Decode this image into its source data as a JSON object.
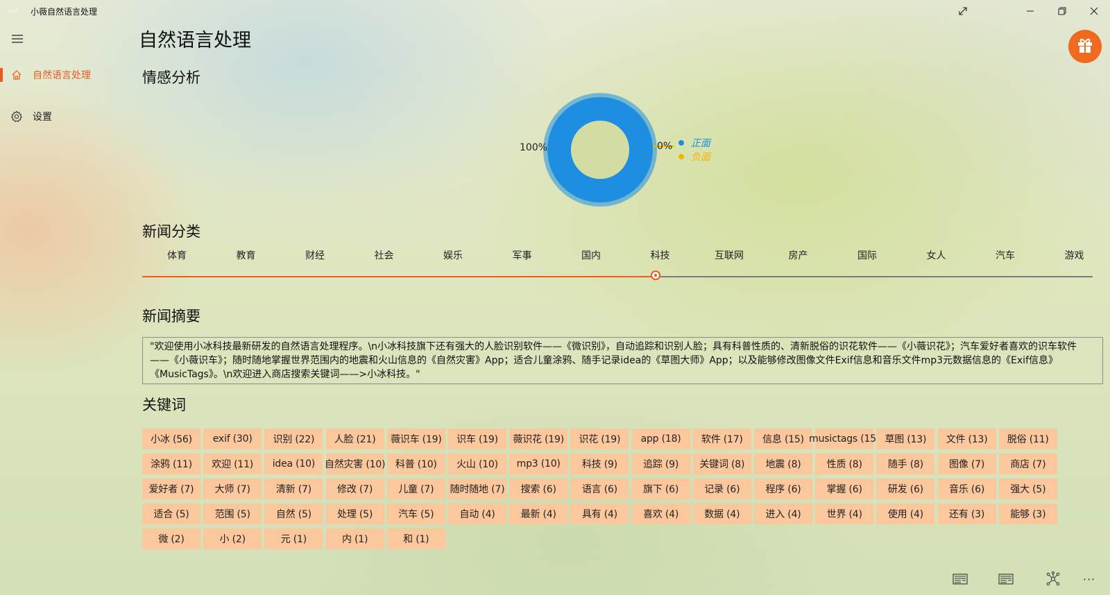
{
  "window": {
    "title": "小薇自然语言处理",
    "logo_text": "NLP",
    "buttons": [
      "expand-icon",
      "minimize-icon",
      "restore-icon",
      "close-icon"
    ]
  },
  "sidebar": {
    "items": [
      {
        "label": "自然语言处理",
        "icon": "home-icon",
        "selected": true
      },
      {
        "label": "设置",
        "icon": "gear-icon",
        "selected": false
      }
    ]
  },
  "page": {
    "title": "自然语言处理"
  },
  "sentiment": {
    "heading": "情感分析",
    "left_pct": "100%",
    "right_pct": "0%"
  },
  "chart_data": {
    "type": "pie",
    "labels": [
      "正面",
      "负面"
    ],
    "values": [
      100,
      0
    ],
    "colors": [
      "#1e8fe0",
      "#f2b705"
    ],
    "donut": true,
    "legend": "right"
  },
  "news_category": {
    "heading": "新闻分类",
    "categories": [
      "体育",
      "教育",
      "财经",
      "社会",
      "娱乐",
      "军事",
      "国内",
      "科技",
      "互联网",
      "房产",
      "国际",
      "女人",
      "汽车",
      "游戏"
    ],
    "selected": "科技",
    "selected_index": 7,
    "accent": "#e85d1f"
  },
  "summary": {
    "heading": "新闻摘要",
    "text": "\"欢迎使用小冰科技最新研发的自然语言处理程序。\\n小冰科技旗下还有强大的人脸识别软件——《微识别》，自动追踪和识别人脸；具有科普性质的、清新脱俗的识花软件——《小薇识花》；汽车爱好者喜欢的识车软件——《小薇识车》；随时随地掌握世界范围内的地震和火山信息的《自然灾害》App；适合儿童涂鸦、随手记录idea的《草图大师》App；以及能够修改图像文件Exif信息和音乐文件mp3元数据信息的《Exif信息》《MusicTags》。\\n欢迎进入商店搜索关键词——>小冰科技。\""
  },
  "keywords": {
    "heading": "关键词",
    "color": "#fbc79c",
    "items": [
      "小冰 (56)",
      "exif (30)",
      "识别 (22)",
      "人脸 (21)",
      "薇识车 (19)",
      "识车 (19)",
      "薇识花 (19)",
      "识花 (19)",
      "app (18)",
      "软件 (17)",
      "信息 (15)",
      "musictags (15)",
      "草图 (13)",
      "文件 (13)",
      "脱俗 (11)",
      "涂鸦 (11)",
      "欢迎 (11)",
      "idea (10)",
      "自然灾害 (10)",
      "科普 (10)",
      "火山 (10)",
      "mp3 (10)",
      "科技 (9)",
      "追踪 (9)",
      "关键词 (8)",
      "地震 (8)",
      "性质 (8)",
      "随手 (8)",
      "图像 (7)",
      "商店 (7)",
      "爱好者 (7)",
      "大师 (7)",
      "清新 (7)",
      "修改 (7)",
      "儿童 (7)",
      "随时随地 (7)",
      "搜索 (6)",
      "语言 (6)",
      "旗下 (6)",
      "记录 (6)",
      "程序 (6)",
      "掌握 (6)",
      "研发 (6)",
      "音乐 (6)",
      "强大 (5)",
      "适合 (5)",
      "范围 (5)",
      "自然 (5)",
      "处理 (5)",
      "汽车 (5)",
      "自动 (4)",
      "最新 (4)",
      "具有 (4)",
      "喜欢 (4)",
      "数据 (4)",
      "进入 (4)",
      "世界 (4)",
      "使用 (4)",
      "还有 (3)",
      "能够 (3)",
      "微 (2)",
      "小 (2)",
      "元 (1)",
      "内 (1)",
      "和 (1)"
    ]
  },
  "gift_button": {
    "icon": "gift-icon"
  },
  "command_bar": {
    "buttons": [
      "news-card-icon",
      "news-card-icon-2",
      "network-graph-icon",
      "more-icon"
    ],
    "more_label": "···"
  }
}
